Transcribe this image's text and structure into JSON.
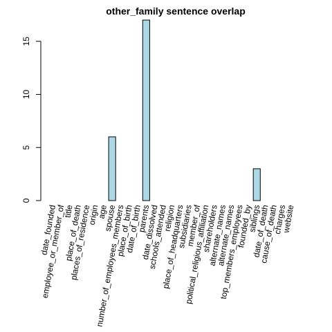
{
  "chart_data": {
    "type": "bar",
    "title": "other_family sentence overlap",
    "xlabel": "",
    "ylabel": "",
    "ylim": [
      0,
      17
    ],
    "yticks": [
      0,
      5,
      10,
      15
    ],
    "bar_color": "#add8e6",
    "bar_border": "#000000",
    "categories": [
      "date_founded",
      "employee_or_member_of",
      "title",
      "place_of_death",
      "places_of_residence",
      "origin",
      "age",
      "spouse",
      "number_of_employees_members",
      "place_of_birth",
      "date_of_birth",
      "parents",
      "date_dissolved",
      "schools_attended",
      "religion",
      "place_of_headquarters",
      "subsidiaries",
      "member_of",
      "political_religious_affiliation",
      "shareholders",
      "alternate_names",
      "alternate_names",
      "top_members_employees",
      "founded_by",
      "siblings",
      "date_of_death",
      "cause_of_death",
      "charges",
      "website"
    ],
    "values": [
      0,
      0,
      0,
      0,
      0,
      0,
      0,
      6,
      0,
      0,
      0,
      17,
      0,
      0,
      0,
      0,
      0,
      0,
      0,
      0,
      0,
      0,
      0,
      0,
      3,
      0,
      0,
      0,
      0
    ]
  }
}
